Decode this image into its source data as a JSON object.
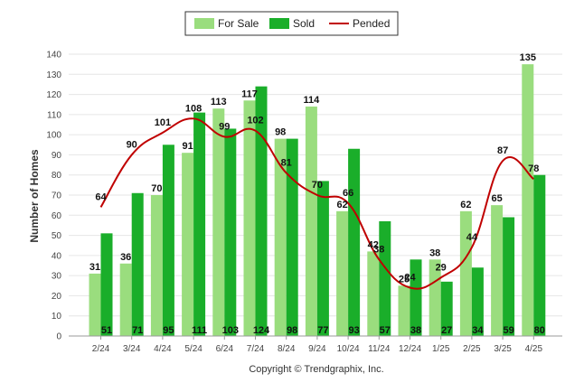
{
  "chart_data": {
    "type": "bar",
    "title": "",
    "xlabel": "",
    "ylabel": "Number of Homes",
    "ylim": [
      0,
      140
    ],
    "yticks": [
      0,
      10,
      20,
      30,
      40,
      50,
      60,
      70,
      80,
      90,
      100,
      110,
      120,
      130,
      140
    ],
    "grid": true,
    "legend_position": "top-center",
    "categories": [
      "2/24",
      "3/24",
      "4/24",
      "5/24",
      "6/24",
      "7/24",
      "8/24",
      "9/24",
      "10/24",
      "11/24",
      "12/24",
      "1/25",
      "2/25",
      "3/25",
      "4/25"
    ],
    "series": [
      {
        "name": "For Sale",
        "type": "bar",
        "color": "#9ADD7E",
        "values": [
          31,
          36,
          70,
          91,
          113,
          117,
          98,
          114,
          62,
          42,
          25,
          38,
          62,
          65,
          135
        ]
      },
      {
        "name": "Sold",
        "type": "bar",
        "color": "#1AAE2A",
        "values": [
          51,
          71,
          95,
          111,
          103,
          124,
          98,
          77,
          93,
          57,
          38,
          27,
          34,
          59,
          80
        ]
      },
      {
        "name": "Pended",
        "type": "line",
        "color": "#C00000",
        "values": [
          64,
          90,
          101,
          108,
          99,
          102,
          81,
          70,
          66,
          38,
          24,
          29,
          44,
          87,
          78
        ]
      }
    ],
    "footer": "Copyright © Trendgraphix, Inc."
  }
}
